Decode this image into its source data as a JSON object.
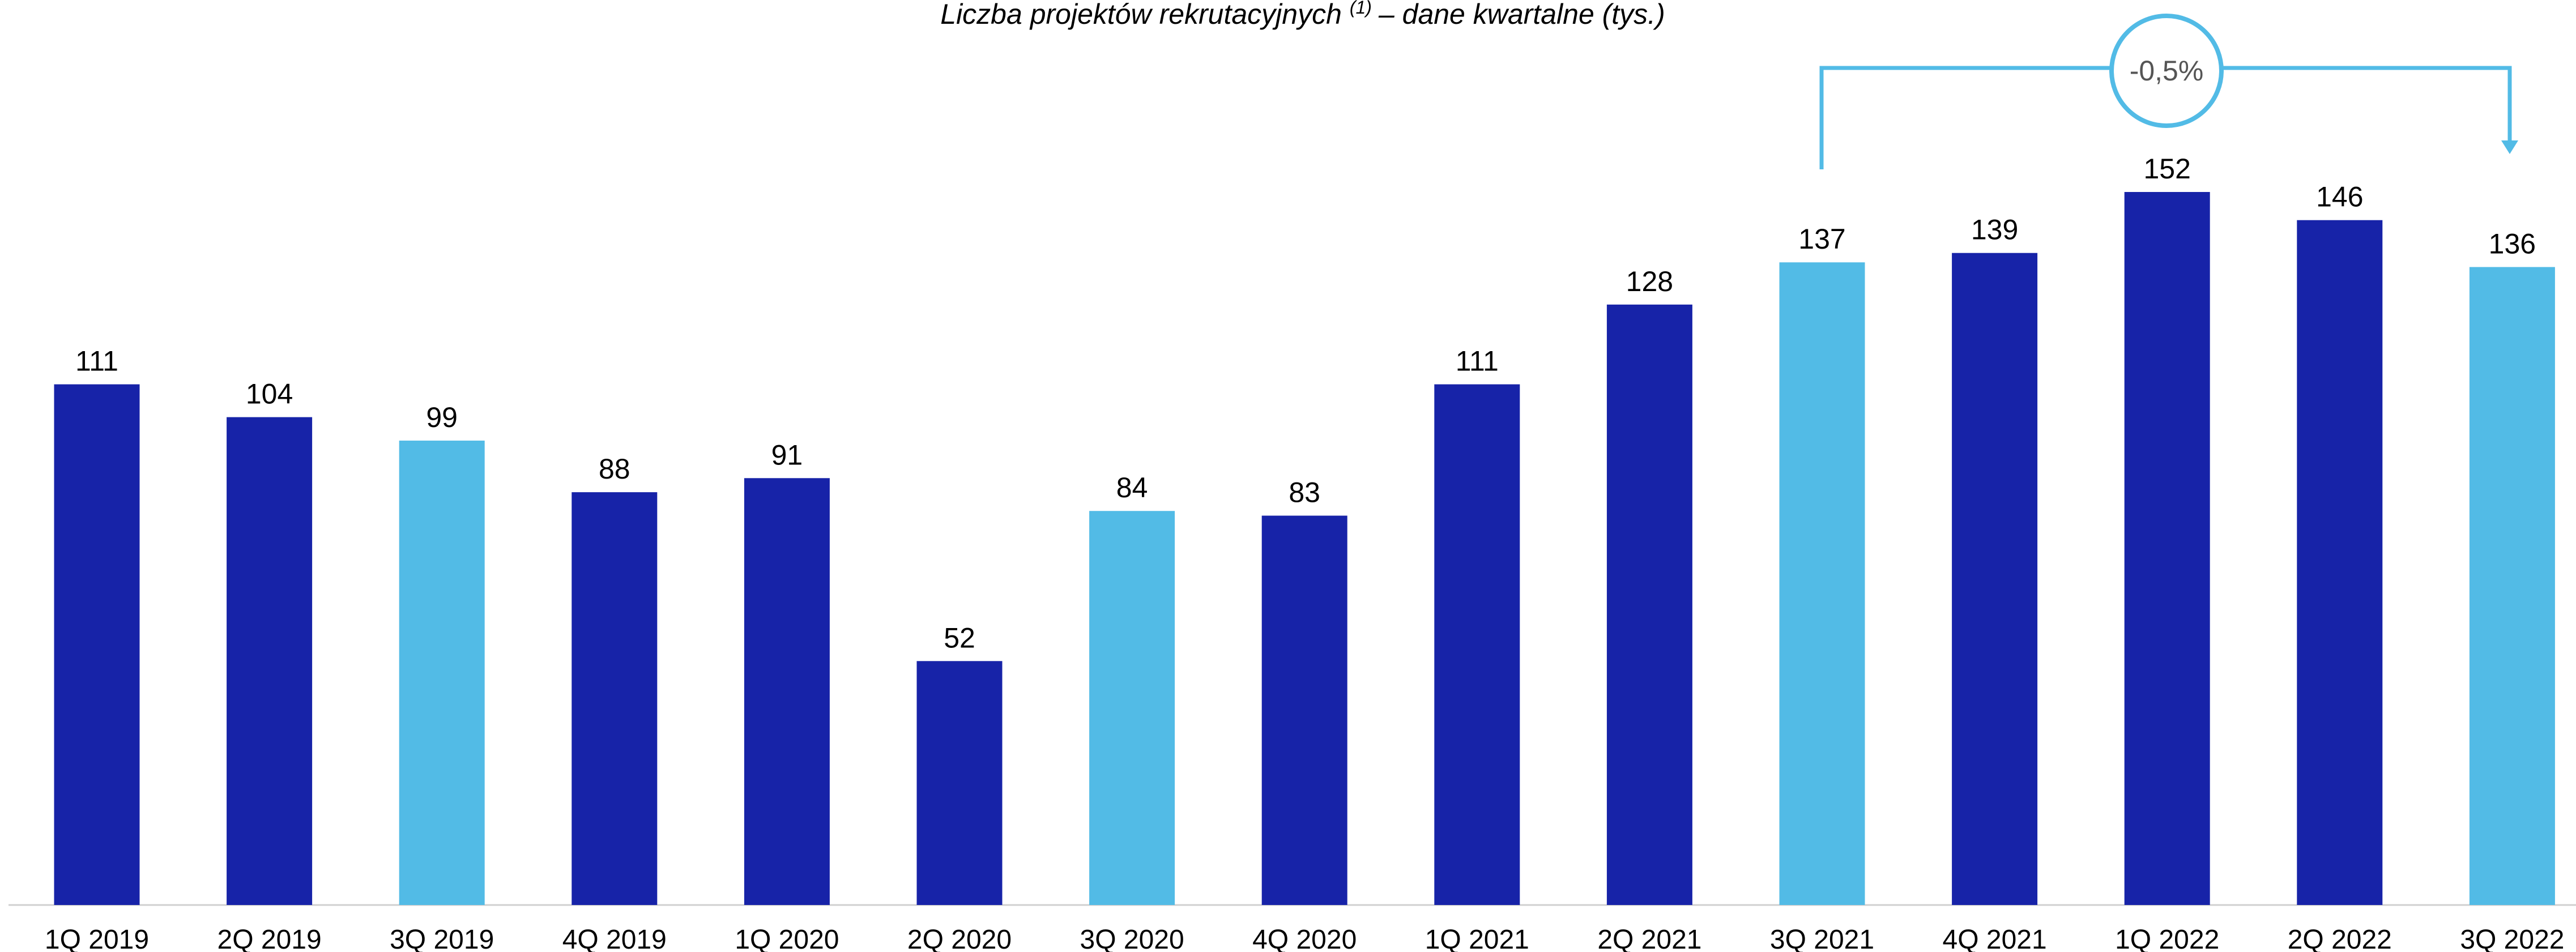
{
  "chart_data": {
    "type": "bar",
    "title": "Liczba projektów rekrutacyjnych",
    "title_note": "(1)",
    "title_suffix": "– dane kwartalne (tys.)",
    "annotation": "-0,5%",
    "categories": [
      "1Q 2019",
      "2Q 2019",
      "3Q 2019",
      "4Q 2019",
      "1Q 2020",
      "2Q 2020",
      "3Q 2020",
      "4Q 2020",
      "1Q 2021",
      "2Q 2021",
      "3Q 2021",
      "4Q 2021",
      "1Q 2022",
      "2Q 2022",
      "3Q 2022"
    ],
    "values": [
      111,
      104,
      99,
      88,
      91,
      52,
      84,
      83,
      111,
      128,
      137,
      139,
      152,
      146,
      136
    ],
    "colors": [
      "#1723a8",
      "#1723a8",
      "#52bbe6",
      "#1723a8",
      "#1723a8",
      "#1723a8",
      "#52bbe6",
      "#1723a8",
      "#1723a8",
      "#1723a8",
      "#52bbe6",
      "#1723a8",
      "#1723a8",
      "#1723a8",
      "#52bbe6"
    ]
  }
}
